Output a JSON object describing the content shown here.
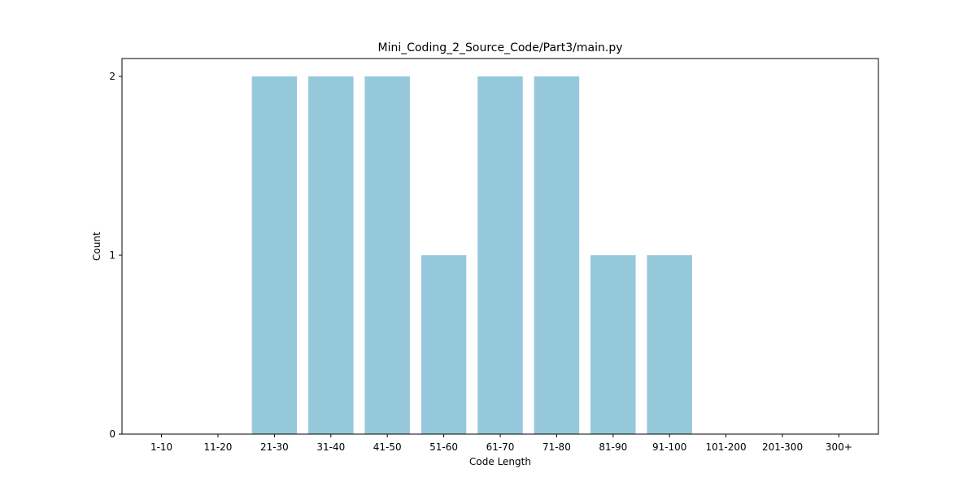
{
  "chart_data": {
    "type": "bar",
    "title": "Mini_Coding_2_Source_Code/Part3/main.py",
    "xlabel": "Code Length",
    "ylabel": "Count",
    "categories": [
      "1-10",
      "11-20",
      "21-30",
      "31-40",
      "41-50",
      "51-60",
      "61-70",
      "71-80",
      "81-90",
      "91-100",
      "101-200",
      "201-300",
      "300+"
    ],
    "values": [
      0,
      0,
      2,
      2,
      2,
      1,
      2,
      2,
      1,
      1,
      0,
      0,
      0
    ],
    "yticks": [
      0,
      1,
      2
    ],
    "ylim": [
      0,
      2.1
    ],
    "bar_color": "#96c8dc",
    "grid": false,
    "legend": "none"
  }
}
